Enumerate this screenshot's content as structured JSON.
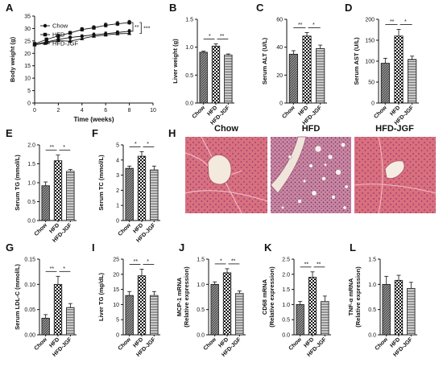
{
  "chart_data": [
    {
      "panel": "A",
      "type": "line",
      "ylabel": "Body weight (g)",
      "xlabel": "Time (weeks)",
      "xlim": [
        0,
        10
      ],
      "ylim": [
        0,
        35
      ],
      "xticks": [
        "0",
        "2",
        "4",
        "6",
        "8",
        "10"
      ],
      "yticks": [
        "0",
        "5",
        "10",
        "15",
        "20",
        "25",
        "30",
        "35"
      ],
      "x": [
        0,
        1,
        2,
        3,
        4,
        5,
        6,
        7,
        8
      ],
      "series": [
        {
          "name": "Chow",
          "marker": "circle",
          "values": [
            23.5,
            24.6,
            25.6,
            26.4,
            26.9,
            27.5,
            27.9,
            28.4,
            28.9
          ],
          "err": [
            0.6,
            0.6,
            0.6,
            0.6,
            0.6,
            0.7,
            0.7,
            0.7,
            0.7
          ]
        },
        {
          "name": "HFD",
          "marker": "square",
          "values": [
            23.8,
            25.6,
            27.0,
            28.2,
            29.6,
            30.3,
            31.3,
            31.9,
            32.4
          ],
          "err": [
            0.6,
            0.6,
            0.7,
            0.7,
            0.8,
            0.8,
            0.9,
            0.9,
            0.9
          ]
        },
        {
          "name": "HFD-JGF",
          "marker": "triangle",
          "values": [
            23.4,
            24.3,
            25.1,
            24.9,
            25.9,
            26.9,
            27.4,
            27.9,
            28.0
          ],
          "err": [
            0.6,
            0.6,
            0.6,
            0.6,
            0.6,
            0.6,
            0.6,
            0.6,
            0.6
          ]
        }
      ],
      "sig": [
        "**",
        "***"
      ]
    },
    {
      "panel": "B",
      "type": "bar",
      "ylabel": "Liver weight (g)",
      "ylim": [
        0,
        1.5
      ],
      "yticks": [
        "0.0",
        "0.5",
        "1.0",
        "1.5"
      ],
      "categories": [
        "Chow",
        "HFD",
        "HFD-JGF"
      ],
      "values": [
        0.91,
        1.02,
        0.86
      ],
      "err": [
        0.02,
        0.04,
        0.02
      ],
      "sig": [
        "*",
        "**"
      ]
    },
    {
      "panel": "C",
      "type": "bar",
      "ylabel": "Serum ALT (U/L)",
      "ylim": [
        0,
        60
      ],
      "yticks": [
        "0",
        "20",
        "40",
        "60"
      ],
      "categories": [
        "Chow",
        "HFD",
        "HFD-JGF"
      ],
      "values": [
        35,
        48,
        39
      ],
      "err": [
        2.5,
        2.5,
        2.5
      ],
      "sig": [
        "**",
        "*"
      ]
    },
    {
      "panel": "D",
      "type": "bar",
      "ylabel": "Serum AST (U/L)",
      "ylim": [
        0,
        200
      ],
      "yticks": [
        "0",
        "50",
        "100",
        "150",
        "200"
      ],
      "categories": [
        "Chow",
        "HFD",
        "HFD-JGF"
      ],
      "values": [
        95,
        160,
        104
      ],
      "err": [
        12,
        16,
        8
      ],
      "sig": [
        "**",
        "*"
      ]
    },
    {
      "panel": "E",
      "type": "bar",
      "ylabel": "Serum TG (mmol/L)",
      "ylim": [
        0,
        2.0
      ],
      "yticks": [
        "0.0",
        "0.5",
        "1.0",
        "1.5",
        "2.0"
      ],
      "categories": [
        "Chow",
        "HFD",
        "HFD-JGF"
      ],
      "values": [
        0.92,
        1.58,
        1.3
      ],
      "err": [
        0.1,
        0.15,
        0.05
      ],
      "sig": [
        "**",
        "*"
      ]
    },
    {
      "panel": "F",
      "type": "bar",
      "ylabel": "Serum TC (mmol/L)",
      "ylim": [
        0,
        5
      ],
      "yticks": [
        "0",
        "1",
        "2",
        "3",
        "4",
        "5"
      ],
      "categories": [
        "Chow",
        "HFD",
        "HFD-JGF"
      ],
      "values": [
        3.45,
        4.25,
        3.35
      ],
      "err": [
        0.15,
        0.3,
        0.25
      ],
      "sig": [
        "*",
        "*"
      ]
    },
    {
      "panel": "G",
      "type": "bar",
      "ylabel": "Serum LDL-C (mmol/L)",
      "ylim": [
        0,
        0.15
      ],
      "yticks": [
        "0.00",
        "0.05",
        "0.10",
        "0.15"
      ],
      "categories": [
        "Chow",
        "HFD",
        "HFD-JGF"
      ],
      "values": [
        0.033,
        0.1,
        0.054
      ],
      "err": [
        0.007,
        0.016,
        0.008
      ],
      "sig": [
        "**",
        "*"
      ]
    },
    {
      "panel": "I",
      "type": "bar",
      "ylabel": "Liver TG (mg/dL)",
      "ylim": [
        0,
        25
      ],
      "yticks": [
        "0",
        "5",
        "10",
        "15",
        "20",
        "25"
      ],
      "categories": [
        "Chow",
        "HFD",
        "HFD-JGF"
      ],
      "values": [
        13,
        19.5,
        13
      ],
      "err": [
        1.3,
        2.2,
        1.3
      ],
      "sig": [
        "**",
        "*"
      ]
    },
    {
      "panel": "J",
      "type": "bar",
      "ylabel": "MCP-1 mRNA\n(Relative expression)",
      "ylim": [
        0,
        1.5
      ],
      "yticks": [
        "0.0",
        "0.5",
        "1.0",
        "1.5"
      ],
      "categories": [
        "Chow",
        "HFD",
        "HFD-JGF"
      ],
      "values": [
        1.0,
        1.23,
        0.82
      ],
      "err": [
        0.05,
        0.08,
        0.05
      ],
      "sig": [
        "*",
        "**"
      ]
    },
    {
      "panel": "K",
      "type": "bar",
      "ylabel": "CD68 mRNA\n(Relative expression)",
      "ylim": [
        0,
        2.5
      ],
      "yticks": [
        "0.0",
        "0.5",
        "1.0",
        "1.5",
        "2.0",
        "2.5"
      ],
      "categories": [
        "Chow",
        "HFD",
        "HFD-JGF"
      ],
      "values": [
        1.0,
        1.9,
        1.1
      ],
      "err": [
        0.1,
        0.18,
        0.18
      ],
      "sig": [
        "**",
        "**"
      ]
    },
    {
      "panel": "L",
      "type": "bar",
      "ylabel": "TNF-α mRNA\n(Relative expression)",
      "ylim": [
        0,
        1.5
      ],
      "yticks": [
        "0.0",
        "0.5",
        "1.0",
        "1.5"
      ],
      "categories": [
        "Chow",
        "HFD",
        "HFD-JGF"
      ],
      "values": [
        1.0,
        1.08,
        0.92
      ],
      "err": [
        0.16,
        0.1,
        0.12
      ],
      "sig": []
    }
  ],
  "histology": {
    "panel": "H",
    "labels": [
      "Chow",
      "HFD",
      "HFD-JGF"
    ]
  }
}
